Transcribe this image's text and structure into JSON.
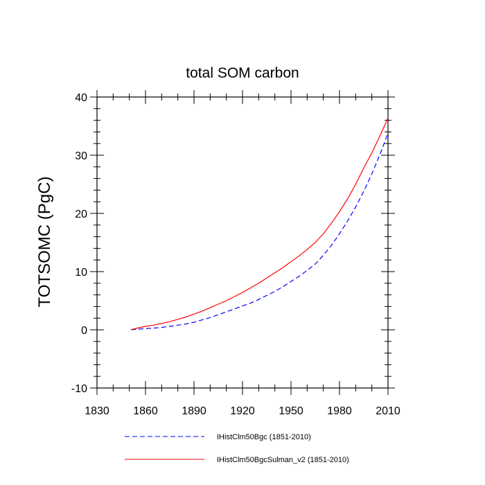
{
  "chart_data": {
    "type": "line",
    "title": "total SOM carbon",
    "xlabel": "",
    "ylabel": "TOTSOMC  (PgC)",
    "xlim": [
      1830,
      2010
    ],
    "ylim": [
      -10,
      40
    ],
    "x_major_ticks": [
      1830,
      1860,
      1890,
      1920,
      1950,
      1980,
      2010
    ],
    "y_major_ticks": [
      -10,
      0,
      10,
      20,
      30,
      40
    ],
    "grid": false,
    "legend_position": "bottom",
    "series": [
      {
        "name": "IHistClm50Bgc (1851-2010)",
        "color": "#0000ff",
        "dash": "dashed",
        "x": [
          1851,
          1855,
          1860,
          1865,
          1870,
          1875,
          1880,
          1885,
          1890,
          1895,
          1900,
          1905,
          1910,
          1915,
          1920,
          1925,
          1930,
          1935,
          1940,
          1945,
          1950,
          1955,
          1960,
          1965,
          1970,
          1975,
          1980,
          1985,
          1990,
          1995,
          2000,
          2005,
          2010
        ],
        "values": [
          0,
          0.1,
          0.2,
          0.3,
          0.4,
          0.6,
          0.8,
          1.0,
          1.3,
          1.7,
          2.1,
          2.6,
          3.1,
          3.6,
          4.1,
          4.6,
          5.2,
          5.9,
          6.6,
          7.4,
          8.3,
          9.2,
          10.2,
          11.3,
          12.8,
          14.5,
          16.5,
          18.7,
          21.1,
          23.8,
          26.8,
          30.1,
          33.8
        ]
      },
      {
        "name": "IHistClm50BgcSulman_v2 (1851-2010)",
        "color": "#ff0000",
        "dash": "solid",
        "x": [
          1851,
          1855,
          1860,
          1865,
          1870,
          1875,
          1880,
          1885,
          1890,
          1895,
          1900,
          1905,
          1910,
          1915,
          1920,
          1925,
          1930,
          1935,
          1940,
          1945,
          1950,
          1955,
          1960,
          1965,
          1970,
          1975,
          1980,
          1985,
          1990,
          1995,
          2000,
          2005,
          2010
        ],
        "values": [
          0,
          0.3,
          0.6,
          0.8,
          1.1,
          1.4,
          1.8,
          2.2,
          2.7,
          3.2,
          3.8,
          4.4,
          5.0,
          5.7,
          6.4,
          7.2,
          8.0,
          8.9,
          9.8,
          10.7,
          11.7,
          12.7,
          13.8,
          15.0,
          16.5,
          18.3,
          20.3,
          22.5,
          25.0,
          27.8,
          30.4,
          33.3,
          36.4
        ]
      }
    ]
  }
}
